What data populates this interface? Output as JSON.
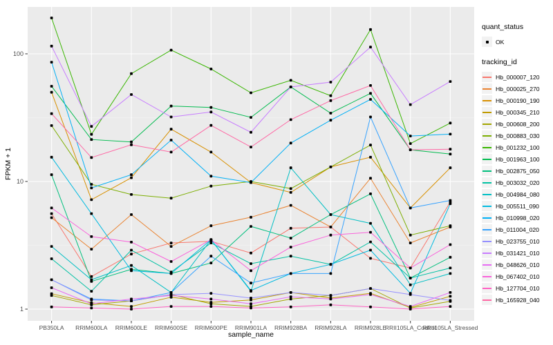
{
  "chart_data": {
    "type": "line",
    "title": "",
    "xlabel": "sample_name",
    "ylabel": "FPKM + 1",
    "y_scale": "log10",
    "y_ticks": [
      1,
      10,
      100
    ],
    "ylim": [
      0.81,
      233
    ],
    "grid": true,
    "legend_position": "right",
    "point_color": "#000000",
    "legend": {
      "quant_status": {
        "title": "quant_status",
        "items": [
          {
            "label": "OK",
            "marker": "black-point"
          }
        ]
      },
      "tracking_id": {
        "title": "tracking_id"
      }
    },
    "categories": [
      "PB350LA",
      "RRIM600LA",
      "RRIM600LE",
      "RRIM600SE",
      "RRIM600PE",
      "RRIM901LA",
      "RRIM928BA",
      "RRIM928LA",
      "RRIM928LE",
      "RRII105LA_Control",
      "RRII105LA_Stressed"
    ],
    "series": [
      {
        "name": "Hb_000007_120",
        "color": "#F8766D",
        "values": [
          5.6,
          1.8,
          2.7,
          3.3,
          3.4,
          2.75,
          4.3,
          4.4,
          2.5,
          2.1,
          6.9
        ]
      },
      {
        "name": "Hb_000025_270",
        "color": "#EA8331",
        "values": [
          5.2,
          2.95,
          5.5,
          3.1,
          4.5,
          5.25,
          6.5,
          4.4,
          10.6,
          3.3,
          4.4
        ]
      },
      {
        "name": "Hb_000190_190",
        "color": "#D89000",
        "values": [
          50,
          7.2,
          10.7,
          25.7,
          17,
          9.8,
          8.2,
          13,
          15.5,
          6.2,
          12.8
        ]
      },
      {
        "name": "Hb_000345_210",
        "color": "#C09B00",
        "values": [
          1.32,
          1.12,
          1.05,
          1.24,
          1.13,
          1.18,
          1.35,
          1.22,
          1.33,
          1.03,
          1.26
        ]
      },
      {
        "name": "Hb_000608_200",
        "color": "#A3A500",
        "values": [
          1.28,
          1.08,
          1.16,
          1.3,
          1.1,
          1.05,
          1.2,
          1.28,
          1.45,
          1.02,
          1.15
        ]
      },
      {
        "name": "Hb_000883_030",
        "color": "#7CAE00",
        "values": [
          27.4,
          9.5,
          7.9,
          7.4,
          9.2,
          10,
          8.8,
          13,
          19.3,
          3.8,
          4.5
        ]
      },
      {
        "name": "Hb_001232_100",
        "color": "#39B600",
        "values": [
          191,
          23.4,
          70,
          107,
          76,
          49.5,
          62,
          47,
          155,
          19.8,
          28.7
        ]
      },
      {
        "name": "Hb_001963_100",
        "color": "#00BB4E",
        "values": [
          55.7,
          21.3,
          20.4,
          39,
          38,
          31.8,
          55,
          34.3,
          49,
          17.7,
          16.4
        ]
      },
      {
        "name": "Hb_002875_050",
        "color": "#00BF7D",
        "values": [
          11.3,
          1.65,
          2.05,
          1.9,
          2.3,
          4.45,
          3.6,
          5.5,
          8,
          1.75,
          2.55
        ]
      },
      {
        "name": "Hb_003032_020",
        "color": "#00C1A3",
        "values": [
          2.48,
          1.38,
          2.9,
          1.95,
          3.3,
          2.27,
          2.6,
          2.24,
          3.36,
          1.75,
          2.1
        ]
      },
      {
        "name": "Hb_004984_080",
        "color": "#00BFC4",
        "values": [
          3.1,
          1.7,
          2.2,
          1.35,
          3.5,
          1.38,
          12.8,
          5.5,
          4.7,
          1.55,
          1.9
        ]
      },
      {
        "name": "Hb_005511_090",
        "color": "#00BAE0",
        "values": [
          15.5,
          5.6,
          2.0,
          1.9,
          3.5,
          1.4,
          1.9,
          2.24,
          2.9,
          1.33,
          6.7
        ]
      },
      {
        "name": "Hb_010998_020",
        "color": "#00B0F6",
        "values": [
          86,
          8.9,
          11.3,
          21.1,
          11,
          9.8,
          20,
          30.2,
          44,
          22.7,
          23.5
        ]
      },
      {
        "name": "Hb_011004_020",
        "color": "#35A2FF",
        "values": [
          1.7,
          1.2,
          1.16,
          1.35,
          2.6,
          1.6,
          1.9,
          1.9,
          32,
          6.2,
          7.1
        ]
      },
      {
        "name": "Hb_023755_010",
        "color": "#9590FF",
        "values": [
          1.7,
          1.18,
          1.16,
          1.3,
          1.33,
          1.22,
          1.35,
          1.28,
          1.45,
          1.3,
          1.17
        ]
      },
      {
        "name": "Hb_031421_010",
        "color": "#C77CFF",
        "values": [
          115,
          27,
          48,
          32,
          35,
          24.3,
          55,
          60,
          113,
          40,
          60.7
        ]
      },
      {
        "name": "Hb_048626_010",
        "color": "#E76BF3",
        "values": [
          1.47,
          1.1,
          1.2,
          1.28,
          1.2,
          1.1,
          1.25,
          1.2,
          1.3,
          1.05,
          1.35
        ]
      },
      {
        "name": "Hb_067402_010",
        "color": "#FA62DB",
        "values": [
          6.2,
          3.7,
          3.35,
          2.36,
          3.5,
          2.0,
          3.06,
          3.8,
          4.0,
          2.1,
          3.2
        ]
      },
      {
        "name": "Hb_127704_010",
        "color": "#FF61C3",
        "values": [
          1.04,
          1.02,
          1.0,
          1.05,
          1.05,
          1.02,
          1.04,
          1.08,
          1.04,
          1.0,
          1.05
        ]
      },
      {
        "name": "Hb_165928_040",
        "color": "#FF67A4",
        "values": [
          34,
          15.4,
          19.4,
          17,
          27.5,
          18.6,
          30.5,
          43,
          56.5,
          17.7,
          17.9
        ]
      }
    ]
  }
}
